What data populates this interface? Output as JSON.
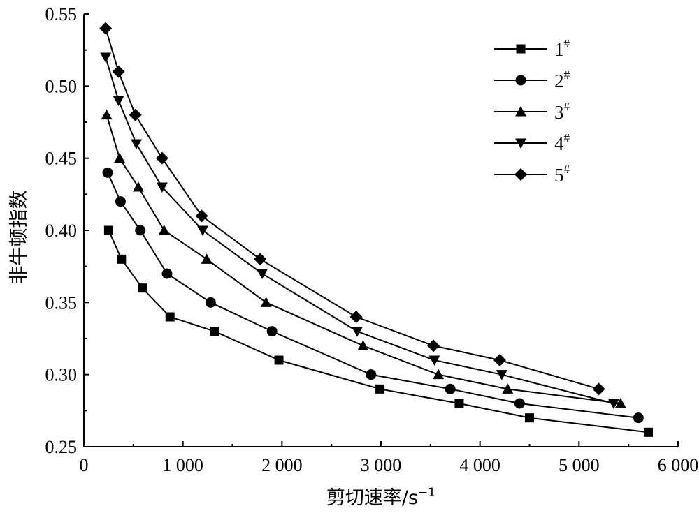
{
  "chart_data": {
    "type": "line",
    "title": "",
    "xlabel_main": "剪切速率/s",
    "xlabel_sup": "−1",
    "ylabel": "非牛顿指数",
    "xlim": [
      0,
      6000
    ],
    "ylim": [
      0.25,
      0.55
    ],
    "x_ticks": [
      0,
      1000,
      2000,
      3000,
      4000,
      5000,
      6000
    ],
    "x_tick_labels": [
      "0",
      "1 000",
      "2 000",
      "3 000",
      "4 000",
      "5 000",
      "6 000"
    ],
    "y_ticks": [
      0.25,
      0.3,
      0.35,
      0.4,
      0.45,
      0.5,
      0.55
    ],
    "y_tick_labels": [
      "0.25",
      "0.30",
      "0.35",
      "0.40",
      "0.45",
      "0.50",
      "0.55"
    ],
    "grid": false,
    "legend_position": "top-right",
    "series": [
      {
        "name": "1",
        "sup": "#",
        "marker": "square",
        "x": [
          250,
          380,
          590,
          870,
          1320,
          1970,
          2990,
          3790,
          4500,
          5700
        ],
        "y": [
          0.4,
          0.38,
          0.36,
          0.34,
          0.33,
          0.31,
          0.29,
          0.28,
          0.27,
          0.26
        ]
      },
      {
        "name": "2",
        "sup": "#",
        "marker": "circle",
        "x": [
          240,
          370,
          570,
          840,
          1280,
          1900,
          2900,
          3700,
          4400,
          5600
        ],
        "y": [
          0.44,
          0.42,
          0.4,
          0.37,
          0.35,
          0.33,
          0.3,
          0.29,
          0.28,
          0.27
        ]
      },
      {
        "name": "3",
        "sup": "#",
        "marker": "triangle-up",
        "x": [
          230,
          360,
          550,
          810,
          1240,
          1840,
          2820,
          3580,
          4280,
          5420
        ],
        "y": [
          0.48,
          0.45,
          0.43,
          0.4,
          0.38,
          0.35,
          0.32,
          0.3,
          0.29,
          0.28
        ]
      },
      {
        "name": "4",
        "sup": "#",
        "marker": "triangle-down",
        "x": [
          220,
          350,
          530,
          790,
          1200,
          1800,
          2760,
          3540,
          4220,
          5350
        ],
        "y": [
          0.52,
          0.49,
          0.46,
          0.43,
          0.4,
          0.37,
          0.33,
          0.31,
          0.3,
          0.28
        ]
      },
      {
        "name": "5",
        "sup": "#",
        "marker": "diamond",
        "x": [
          220,
          350,
          520,
          790,
          1190,
          1780,
          2750,
          3530,
          4200,
          5200
        ],
        "y": [
          0.54,
          0.51,
          0.48,
          0.45,
          0.41,
          0.38,
          0.34,
          0.32,
          0.31,
          0.29
        ]
      }
    ]
  }
}
